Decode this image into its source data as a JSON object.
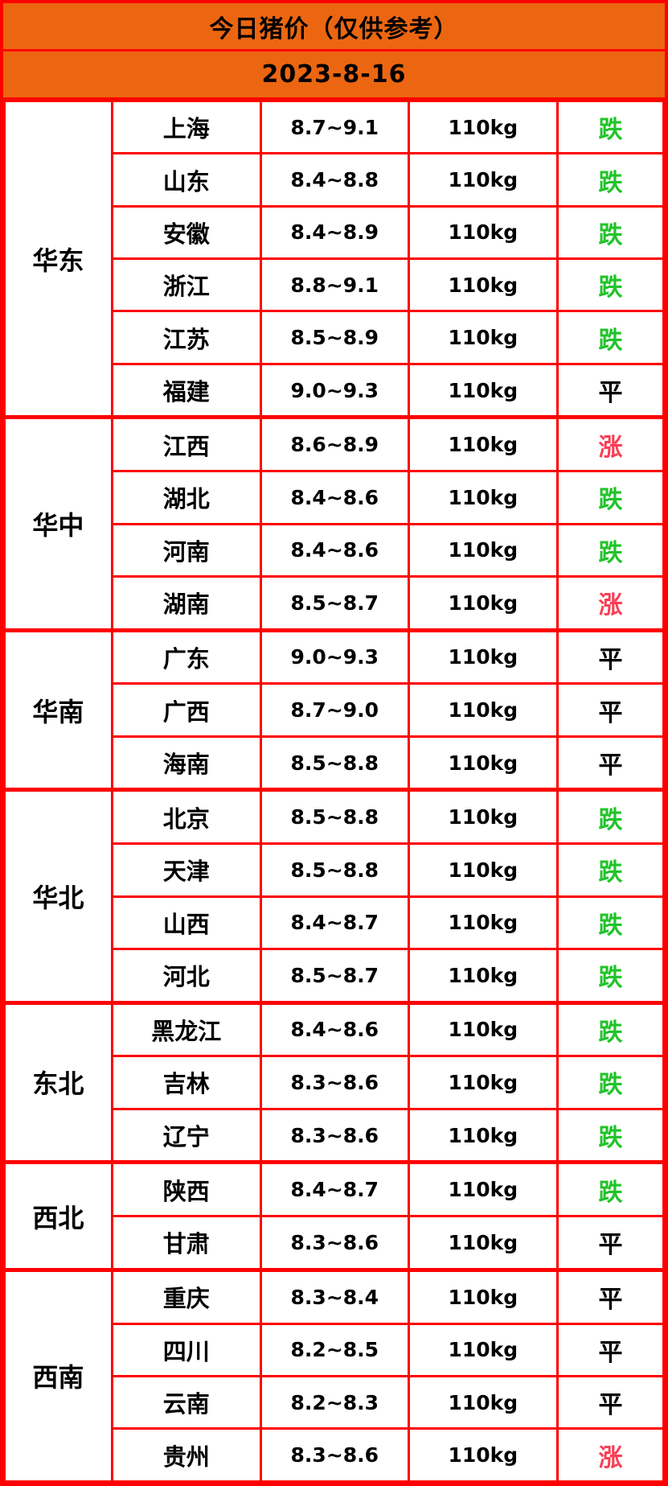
{
  "header": {
    "title": "今日猪价（仅供参考）",
    "date": "2023-8-16"
  },
  "colors": {
    "header_bg": "#EC6611",
    "border_red": "#FE0000",
    "trend_down": "#22C32A",
    "trend_up": "#FA3E55",
    "trend_flat": "#000000"
  },
  "table": {
    "regions": [
      {
        "name": "华东",
        "rows": [
          {
            "province": "上海",
            "price": "8.7~9.1",
            "weight": "110kg",
            "trend": "跌",
            "trend_type": "down"
          },
          {
            "province": "山东",
            "price": "8.4~8.8",
            "weight": "110kg",
            "trend": "跌",
            "trend_type": "down"
          },
          {
            "province": "安徽",
            "price": "8.4~8.9",
            "weight": "110kg",
            "trend": "跌",
            "trend_type": "down"
          },
          {
            "province": "浙江",
            "price": "8.8~9.1",
            "weight": "110kg",
            "trend": "跌",
            "trend_type": "down"
          },
          {
            "province": "江苏",
            "price": "8.5~8.9",
            "weight": "110kg",
            "trend": "跌",
            "trend_type": "down"
          },
          {
            "province": "福建",
            "price": "9.0~9.3",
            "weight": "110kg",
            "trend": "平",
            "trend_type": "flat"
          }
        ]
      },
      {
        "name": "华中",
        "rows": [
          {
            "province": "江西",
            "price": "8.6~8.9",
            "weight": "110kg",
            "trend": "涨",
            "trend_type": "up"
          },
          {
            "province": "湖北",
            "price": "8.4~8.6",
            "weight": "110kg",
            "trend": "跌",
            "trend_type": "down"
          },
          {
            "province": "河南",
            "price": "8.4~8.6",
            "weight": "110kg",
            "trend": "跌",
            "trend_type": "down"
          },
          {
            "province": "湖南",
            "price": "8.5~8.7",
            "weight": "110kg",
            "trend": "涨",
            "trend_type": "up"
          }
        ]
      },
      {
        "name": "华南",
        "rows": [
          {
            "province": "广东",
            "price": "9.0~9.3",
            "weight": "110kg",
            "trend": "平",
            "trend_type": "flat"
          },
          {
            "province": "广西",
            "price": "8.7~9.0",
            "weight": "110kg",
            "trend": "平",
            "trend_type": "flat"
          },
          {
            "province": "海南",
            "price": "8.5~8.8",
            "weight": "110kg",
            "trend": "平",
            "trend_type": "flat"
          }
        ]
      },
      {
        "name": "华北",
        "rows": [
          {
            "province": "北京",
            "price": "8.5~8.8",
            "weight": "110kg",
            "trend": "跌",
            "trend_type": "down"
          },
          {
            "province": "天津",
            "price": "8.5~8.8",
            "weight": "110kg",
            "trend": "跌",
            "trend_type": "down"
          },
          {
            "province": "山西",
            "price": "8.4~8.7",
            "weight": "110kg",
            "trend": "跌",
            "trend_type": "down"
          },
          {
            "province": "河北",
            "price": "8.5~8.7",
            "weight": "110kg",
            "trend": "跌",
            "trend_type": "down"
          }
        ]
      },
      {
        "name": "东北",
        "rows": [
          {
            "province": "黑龙江",
            "price": "8.4~8.6",
            "weight": "110kg",
            "trend": "跌",
            "trend_type": "down"
          },
          {
            "province": "吉林",
            "price": "8.3~8.6",
            "weight": "110kg",
            "trend": "跌",
            "trend_type": "down"
          },
          {
            "province": "辽宁",
            "price": "8.3~8.6",
            "weight": "110kg",
            "trend": "跌",
            "trend_type": "down"
          }
        ]
      },
      {
        "name": "西北",
        "rows": [
          {
            "province": "陕西",
            "price": "8.4~8.7",
            "weight": "110kg",
            "trend": "跌",
            "trend_type": "down"
          },
          {
            "province": "甘肃",
            "price": "8.3~8.6",
            "weight": "110kg",
            "trend": "平",
            "trend_type": "flat"
          }
        ]
      },
      {
        "name": "西南",
        "rows": [
          {
            "province": "重庆",
            "price": "8.3~8.4",
            "weight": "110kg",
            "trend": "平",
            "trend_type": "flat"
          },
          {
            "province": "四川",
            "price": "8.2~8.5",
            "weight": "110kg",
            "trend": "平",
            "trend_type": "flat"
          },
          {
            "province": "云南",
            "price": "8.2~8.3",
            "weight": "110kg",
            "trend": "平",
            "trend_type": "flat"
          },
          {
            "province": "贵州",
            "price": "8.3~8.6",
            "weight": "110kg",
            "trend": "涨",
            "trend_type": "up"
          }
        ]
      }
    ]
  },
  "chart_data": {
    "type": "table",
    "title": "今日猪价（仅供参考）",
    "date": "2023-8-16",
    "rows": [
      [
        "华东",
        "上海",
        "8.7~9.1",
        "110kg",
        "跌"
      ],
      [
        "华东",
        "山东",
        "8.4~8.8",
        "110kg",
        "跌"
      ],
      [
        "华东",
        "安徽",
        "8.4~8.9",
        "110kg",
        "跌"
      ],
      [
        "华东",
        "浙江",
        "8.8~9.1",
        "110kg",
        "跌"
      ],
      [
        "华东",
        "江苏",
        "8.5~8.9",
        "110kg",
        "跌"
      ],
      [
        "华东",
        "福建",
        "9.0~9.3",
        "110kg",
        "平"
      ],
      [
        "华中",
        "江西",
        "8.6~8.9",
        "110kg",
        "涨"
      ],
      [
        "华中",
        "湖北",
        "8.4~8.6",
        "110kg",
        "跌"
      ],
      [
        "华中",
        "河南",
        "8.4~8.6",
        "110kg",
        "跌"
      ],
      [
        "华中",
        "湖南",
        "8.5~8.7",
        "110kg",
        "涨"
      ],
      [
        "华南",
        "广东",
        "9.0~9.3",
        "110kg",
        "平"
      ],
      [
        "华南",
        "广西",
        "8.7~9.0",
        "110kg",
        "平"
      ],
      [
        "华南",
        "海南",
        "8.5~8.8",
        "110kg",
        "平"
      ],
      [
        "华北",
        "北京",
        "8.5~8.8",
        "110kg",
        "跌"
      ],
      [
        "华北",
        "天津",
        "8.5~8.8",
        "110kg",
        "跌"
      ],
      [
        "华北",
        "山西",
        "8.4~8.7",
        "110kg",
        "跌"
      ],
      [
        "华北",
        "河北",
        "8.5~8.7",
        "110kg",
        "跌"
      ],
      [
        "东北",
        "黑龙江",
        "8.4~8.6",
        "110kg",
        "跌"
      ],
      [
        "东北",
        "吉林",
        "8.3~8.6",
        "110kg",
        "跌"
      ],
      [
        "东北",
        "辽宁",
        "8.3~8.6",
        "110kg",
        "跌"
      ],
      [
        "西北",
        "陕西",
        "8.4~8.7",
        "110kg",
        "跌"
      ],
      [
        "西北",
        "甘肃",
        "8.3~8.6",
        "110kg",
        "平"
      ],
      [
        "西南",
        "重庆",
        "8.3~8.4",
        "110kg",
        "平"
      ],
      [
        "西南",
        "四川",
        "8.2~8.5",
        "110kg",
        "平"
      ],
      [
        "西南",
        "云南",
        "8.2~8.3",
        "110kg",
        "平"
      ],
      [
        "西南",
        "贵州",
        "8.3~8.6",
        "110kg",
        "涨"
      ]
    ]
  }
}
